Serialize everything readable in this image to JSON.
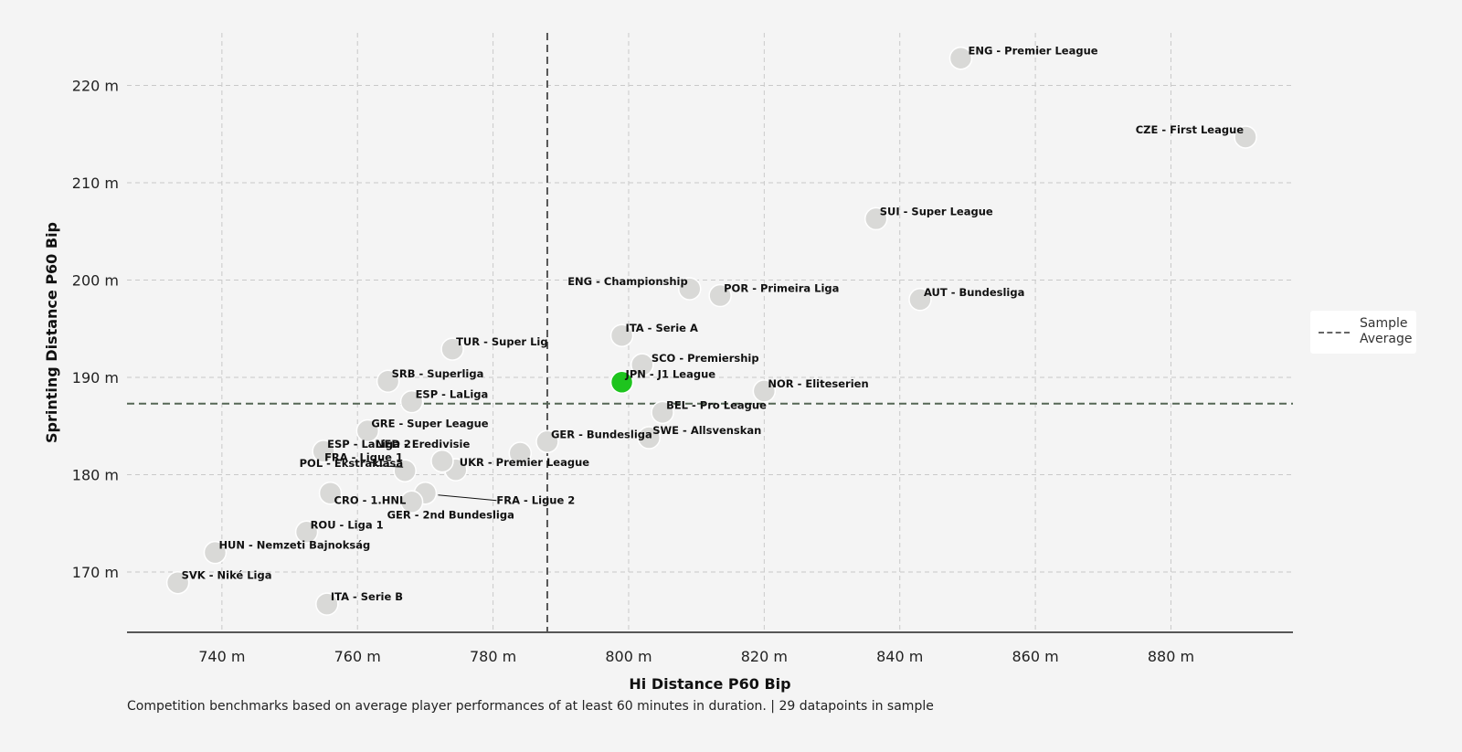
{
  "chart_data": {
    "type": "scatter",
    "title": "",
    "xlabel": "Hi Distance P60 Bip",
    "ylabel": "Sprinting Distance P60 Bip",
    "xlim": [
      726,
      898
    ],
    "ylim": [
      163.8,
      225.4
    ],
    "x_ticks": [
      740,
      760,
      780,
      800,
      820,
      840,
      860,
      880
    ],
    "y_ticks": [
      170,
      180,
      190,
      200,
      210,
      220
    ],
    "x_unit": "m",
    "y_unit": "m",
    "grid": true,
    "reference_lines": {
      "x": 788,
      "y": 187.3,
      "name": "Sample Average"
    },
    "legend": {
      "position": "right",
      "entries": [
        "Sample Average"
      ]
    },
    "highlight_color": "#1ec41e",
    "point_color": "#d9d9d7",
    "points": [
      {
        "label": "ENG - Premier League",
        "x": 849,
        "y": 222.8
      },
      {
        "label": "CZE - First League",
        "x": 891,
        "y": 214.7
      },
      {
        "label": "SUI - Super League",
        "x": 836.5,
        "y": 206.3
      },
      {
        "label": "ENG - Championship",
        "x": 809,
        "y": 199.1
      },
      {
        "label": "POR - Primeira Liga",
        "x": 813.5,
        "y": 198.4
      },
      {
        "label": "AUT - Bundesliga",
        "x": 843,
        "y": 198.0
      },
      {
        "label": "ITA - Serie A",
        "x": 799,
        "y": 194.3
      },
      {
        "label": "TUR - Super Lig",
        "x": 774,
        "y": 192.9
      },
      {
        "label": "SCO - Premiership",
        "x": 802,
        "y": 191.3
      },
      {
        "label": "JPN - J1 League",
        "x": 799,
        "y": 189.5,
        "highlight": true
      },
      {
        "label": "SRB - Superliga",
        "x": 764.5,
        "y": 189.6
      },
      {
        "label": "NOR - Eliteserien",
        "x": 820,
        "y": 188.6
      },
      {
        "label": "ESP - LaLiga",
        "x": 768,
        "y": 187.5
      },
      {
        "label": "BEL - Pro League",
        "x": 805,
        "y": 186.4
      },
      {
        "label": "GRE - Super League",
        "x": 761.5,
        "y": 184.5
      },
      {
        "label": "SWE - Allsvenskan",
        "x": 803,
        "y": 183.8
      },
      {
        "label": "GER - Bundesliga",
        "x": 788,
        "y": 183.4
      },
      {
        "label": "ESP - LaLiga 2",
        "x": 755,
        "y": 182.4
      },
      {
        "label": "NED - Eredivisie",
        "x": 784,
        "y": 182.2
      },
      {
        "label": "POL - Ekstraklasa",
        "x": 767,
        "y": 180.4
      },
      {
        "label": "UKR - Premier League",
        "x": 774.5,
        "y": 180.5
      },
      {
        "label": "FRA - Ligue 1",
        "x": 772.5,
        "y": 181.4
      },
      {
        "label": "CRO - 1.HNL",
        "x": 756,
        "y": 178.1
      },
      {
        "label": "FRA - Ligue 2",
        "x": 770,
        "y": 178.1
      },
      {
        "label": "GER - 2nd Bundesliga",
        "x": 768,
        "y": 177.2
      },
      {
        "label": "ROU - Liga 1",
        "x": 752.5,
        "y": 174.1
      },
      {
        "label": "HUN - Nemzeti Bajnokság",
        "x": 739,
        "y": 172.0
      },
      {
        "label": "SVK - Niké Liga",
        "x": 733.5,
        "y": 168.9
      },
      {
        "label": "ITA - Serie B",
        "x": 755.5,
        "y": 166.7
      }
    ]
  },
  "caption": "Competition benchmarks based on average player performances of at least 60 minutes in duration. | 29 datapoints in sample",
  "legend": {
    "label_line1": "Sample",
    "label_line2": "Average"
  }
}
